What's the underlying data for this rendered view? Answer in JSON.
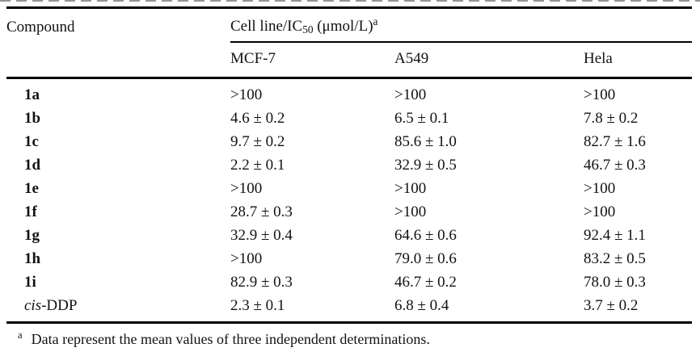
{
  "table": {
    "compound_header": "Compound",
    "cellline_header": {
      "prefix": "Cell line/IC",
      "sub": "50",
      "mid": " (μmol/L)",
      "sup": "a"
    },
    "columns": [
      "MCF-7",
      "A549",
      "Hela"
    ],
    "rows": [
      {
        "name": "1a",
        "bold": true,
        "italic_prefix": "",
        "mcf7": ">100",
        "a549": ">100",
        "hela": ">100"
      },
      {
        "name": "1b",
        "bold": true,
        "italic_prefix": "",
        "mcf7": "4.6 ± 0.2",
        "a549": "6.5 ± 0.1",
        "hela": "7.8 ± 0.2"
      },
      {
        "name": "1c",
        "bold": true,
        "italic_prefix": "",
        "mcf7": "9.7 ± 0.2",
        "a549": "85.6 ± 1.0",
        "hela": "82.7 ± 1.6"
      },
      {
        "name": "1d",
        "bold": true,
        "italic_prefix": "",
        "mcf7": "2.2 ± 0.1",
        "a549": "32.9 ± 0.5",
        "hela": "46.7 ± 0.3"
      },
      {
        "name": "1e",
        "bold": true,
        "italic_prefix": "",
        "mcf7": ">100",
        "a549": ">100",
        "hela": ">100"
      },
      {
        "name": "1f",
        "bold": true,
        "italic_prefix": "",
        "mcf7": "28.7 ± 0.3",
        "a549": ">100",
        "hela": ">100"
      },
      {
        "name": "1g",
        "bold": true,
        "italic_prefix": "",
        "mcf7": "32.9 ± 0.4",
        "a549": "64.6 ± 0.6",
        "hela": "92.4 ± 1.1"
      },
      {
        "name": "1h",
        "bold": true,
        "italic_prefix": "",
        "mcf7": ">100",
        "a549": "79.0 ± 0.6",
        "hela": "83.2 ± 0.5"
      },
      {
        "name": "1i",
        "bold": true,
        "italic_prefix": "",
        "mcf7": "82.9 ± 0.3",
        "a549": "46.7 ± 0.2",
        "hela": "78.0 ± 0.3"
      },
      {
        "name": "-DDP",
        "bold": false,
        "italic_prefix": "cis",
        "mcf7": "2.3 ± 0.1",
        "a549": "6.8 ± 0.4",
        "hela": "3.7 ± 0.2"
      }
    ],
    "footnote": {
      "sup": "a",
      "text": "Data represent the mean values of three independent determinations."
    }
  }
}
